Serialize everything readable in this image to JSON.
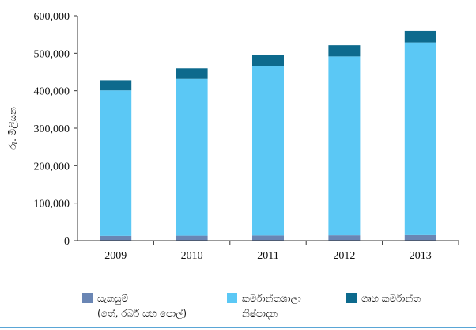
{
  "chart_data": {
    "type": "bar",
    "stacked": true,
    "categories": [
      "2009",
      "2010",
      "2011",
      "2012",
      "2013"
    ],
    "series": [
      {
        "name": "සැකසුම් (තේ, රබර් සහ පොල්)",
        "values": [
          13000,
          13500,
          14000,
          14500,
          15000
        ],
        "color": "#6a86b4"
      },
      {
        "name": "කර්මාන්තශාලා නිෂ්පාදන",
        "values": [
          388000,
          418000,
          452000,
          477000,
          514000
        ],
        "color": "#5bc8f5"
      },
      {
        "name": "ගෘහ කර්මාන්ත",
        "values": [
          27000,
          28500,
          30000,
          30000,
          31000
        ],
        "color": "#0d6a8d"
      }
    ],
    "ylabel": "රු. මිලියන",
    "xlabel": "",
    "ylim": [
      0,
      600000
    ],
    "yticks": [
      "0",
      "100,000",
      "200,000",
      "300,000",
      "400,000",
      "500,000",
      "600,000"
    ],
    "grid": false,
    "legend_position": "bottom"
  },
  "legend": {
    "items": [
      {
        "line1": "සැකසුම්",
        "line2": "(තේ, රබර් සහ පොල්)",
        "color": "#6a86b4"
      },
      {
        "line1": "කර්මාන්තශාලා",
        "line2": "නිෂ්පාදන",
        "color": "#5bc8f5"
      },
      {
        "line1": "ගෘහ කර්මාන්ත",
        "line2": "",
        "color": "#0d6a8d"
      }
    ]
  },
  "colors": {
    "axis": "#333333",
    "rule": "#5aa6d6"
  }
}
